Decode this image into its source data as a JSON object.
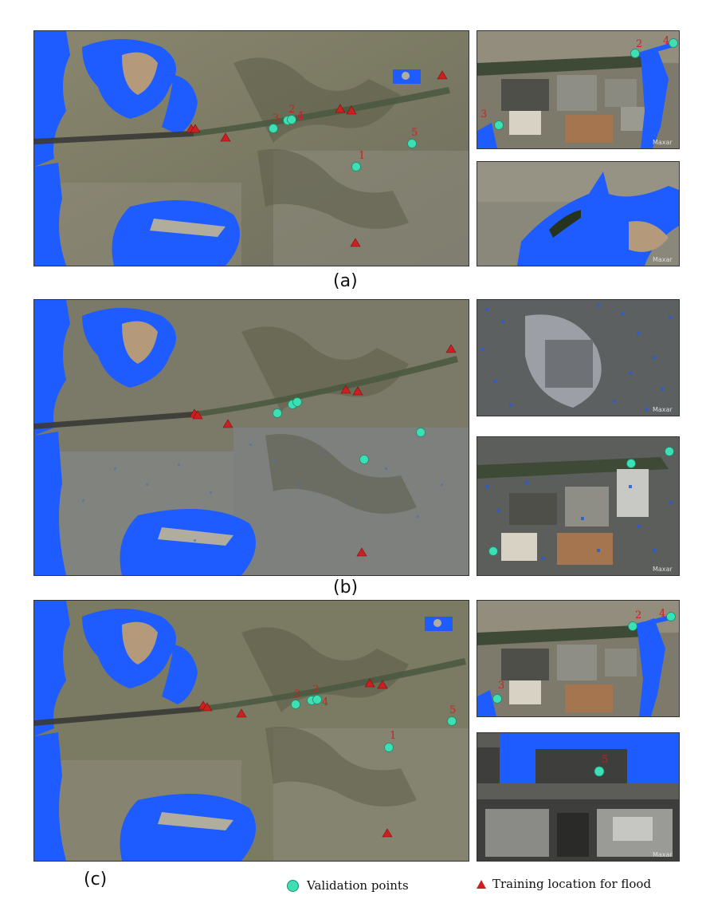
{
  "figure": {
    "captions": {
      "a": "(a)",
      "b": "(b)",
      "c": "(c)"
    },
    "legend": {
      "validation_label": "Validation points",
      "training_label": "Training location for flood",
      "validation_color": "#3de0b5",
      "training_color": "#cc1f1f"
    },
    "flood_color": "#1f5cff",
    "map_attribution": "Maxar",
    "marker_labels": [
      "1",
      "2",
      "3",
      "4",
      "5"
    ]
  }
}
